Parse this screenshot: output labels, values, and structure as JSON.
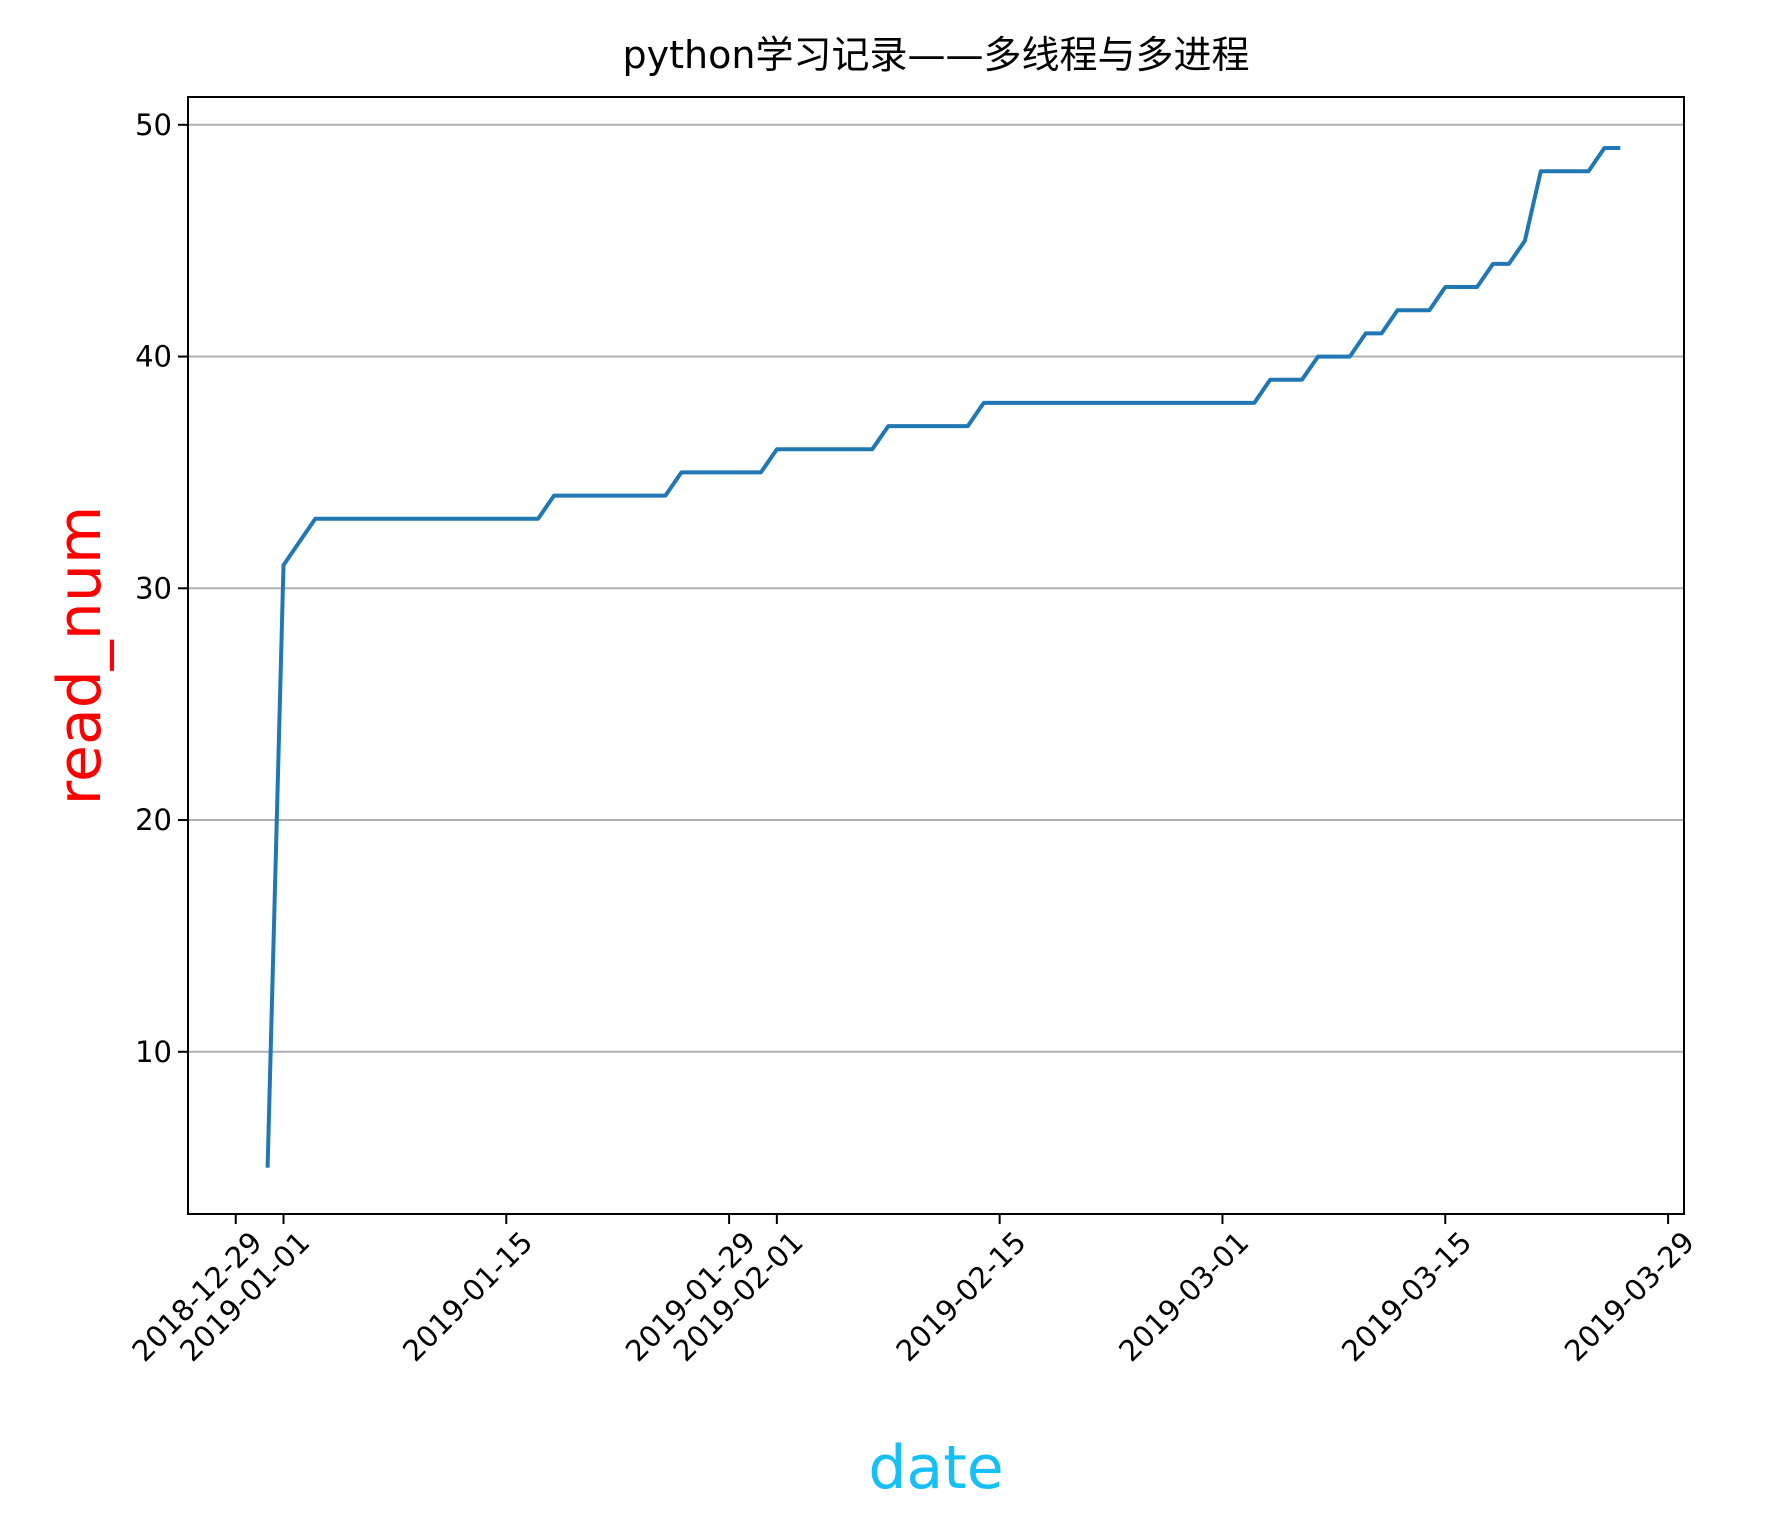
{
  "chart_data": {
    "type": "line",
    "title": "python学习记录——多线程与多进程",
    "xlabel": "date",
    "ylabel": "read_num",
    "xlabel_color": "#14c0f5",
    "ylabel_color": "#ff0000",
    "line_color": "#1f77b4",
    "grid": "y",
    "grid_color": "#b0b0b0",
    "legend": "none",
    "x_type": "date",
    "xlim": [
      "2018-12-26",
      "2019-03-30"
    ],
    "ylim": [
      3,
      51.2
    ],
    "x_ticks": [
      "2018-12-29",
      "2019-01-01",
      "2019-01-15",
      "2019-01-29",
      "2019-02-01",
      "2019-02-15",
      "2019-03-01",
      "2019-03-15",
      "2019-03-29"
    ],
    "y_ticks": [
      10,
      20,
      30,
      40,
      50
    ],
    "x_tick_rotation": 45,
    "series": [
      {
        "x": [
          "2018-12-31",
          "2019-01-01",
          "2019-01-03",
          "2019-01-17",
          "2019-01-18",
          "2019-01-25",
          "2019-01-26",
          "2019-01-31",
          "2019-02-01",
          "2019-02-07",
          "2019-02-08",
          "2019-02-13",
          "2019-02-14",
          "2019-03-03",
          "2019-03-04",
          "2019-03-06",
          "2019-03-07",
          "2019-03-09",
          "2019-03-10",
          "2019-03-11",
          "2019-03-12",
          "2019-03-14",
          "2019-03-15",
          "2019-03-17",
          "2019-03-18",
          "2019-03-19",
          "2019-03-20",
          "2019-03-21",
          "2019-03-24",
          "2019-03-25",
          "2019-03-26"
        ],
        "y": [
          5,
          31,
          33,
          33,
          34,
          34,
          35,
          35,
          36,
          36,
          37,
          37,
          38,
          38,
          39,
          39,
          40,
          40,
          41,
          41,
          42,
          42,
          43,
          43,
          44,
          44,
          45,
          48,
          48,
          49,
          49
        ]
      }
    ]
  }
}
